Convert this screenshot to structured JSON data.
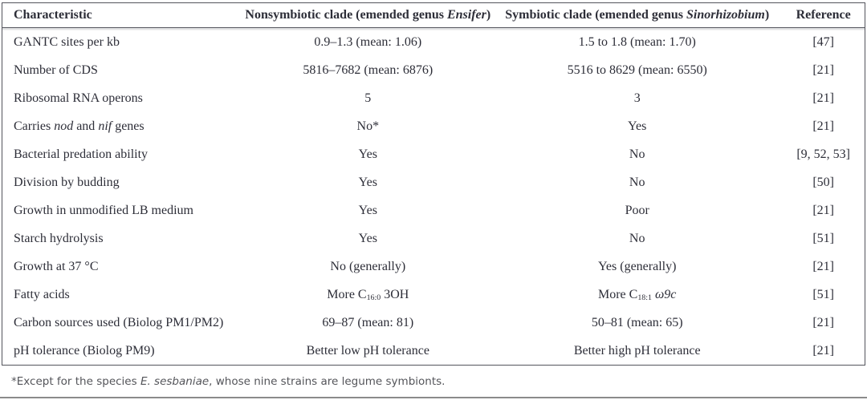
{
  "colors": {
    "text": "#2d2e38",
    "border": "#53545c",
    "footnote_text": "#54555a",
    "bottom_rule": "#8b8b8b"
  },
  "table": {
    "headers": [
      {
        "segments": [
          {
            "t": "Characteristic"
          }
        ]
      },
      {
        "segments": [
          {
            "t": "Nonsymbiotic clade (emended genus "
          },
          {
            "t": "Ensifer",
            "i": true
          },
          {
            "t": ")"
          }
        ]
      },
      {
        "segments": [
          {
            "t": "Symbiotic clade (emended genus "
          },
          {
            "t": "Sinorhizobium",
            "i": true
          },
          {
            "t": ")"
          }
        ]
      },
      {
        "segments": [
          {
            "t": "Reference"
          }
        ]
      }
    ],
    "rows": [
      {
        "characteristic": [
          {
            "t": "GANTC sites per kb"
          }
        ],
        "nonsymbiotic": [
          {
            "t": "0.9–1.3 (mean: 1.06)"
          }
        ],
        "symbiotic": [
          {
            "t": "1.5 to 1.8 (mean: 1.70)"
          }
        ],
        "reference": [
          {
            "t": "[47]"
          }
        ]
      },
      {
        "characteristic": [
          {
            "t": "Number of CDS"
          }
        ],
        "nonsymbiotic": [
          {
            "t": "5816–7682 (mean: 6876)"
          }
        ],
        "symbiotic": [
          {
            "t": "5516 to 8629 (mean: 6550)"
          }
        ],
        "reference": [
          {
            "t": "[21]"
          }
        ]
      },
      {
        "characteristic": [
          {
            "t": "Ribosomal RNA operons"
          }
        ],
        "nonsymbiotic": [
          {
            "t": "5"
          }
        ],
        "symbiotic": [
          {
            "t": "3"
          }
        ],
        "reference": [
          {
            "t": "[21]"
          }
        ]
      },
      {
        "characteristic": [
          {
            "t": "Carries "
          },
          {
            "t": "nod",
            "i": true
          },
          {
            "t": " and "
          },
          {
            "t": "nif",
            "i": true
          },
          {
            "t": " genes"
          }
        ],
        "nonsymbiotic": [
          {
            "t": "No*"
          }
        ],
        "symbiotic": [
          {
            "t": "Yes"
          }
        ],
        "reference": [
          {
            "t": "[21]"
          }
        ]
      },
      {
        "characteristic": [
          {
            "t": "Bacterial predation ability"
          }
        ],
        "nonsymbiotic": [
          {
            "t": "Yes"
          }
        ],
        "symbiotic": [
          {
            "t": "No"
          }
        ],
        "reference": [
          {
            "t": "[9, 52, 53]"
          }
        ]
      },
      {
        "characteristic": [
          {
            "t": "Division by budding"
          }
        ],
        "nonsymbiotic": [
          {
            "t": "Yes"
          }
        ],
        "symbiotic": [
          {
            "t": "No"
          }
        ],
        "reference": [
          {
            "t": "[50]"
          }
        ]
      },
      {
        "characteristic": [
          {
            "t": "Growth in unmodified LB medium"
          }
        ],
        "nonsymbiotic": [
          {
            "t": "Yes"
          }
        ],
        "symbiotic": [
          {
            "t": "Poor"
          }
        ],
        "reference": [
          {
            "t": "[21]"
          }
        ]
      },
      {
        "characteristic": [
          {
            "t": "Starch hydrolysis"
          }
        ],
        "nonsymbiotic": [
          {
            "t": "Yes"
          }
        ],
        "symbiotic": [
          {
            "t": "No"
          }
        ],
        "reference": [
          {
            "t": "[51]"
          }
        ]
      },
      {
        "characteristic": [
          {
            "t": "Growth at 37 °C"
          }
        ],
        "nonsymbiotic": [
          {
            "t": "No (generally)"
          }
        ],
        "symbiotic": [
          {
            "t": "Yes (generally)"
          }
        ],
        "reference": [
          {
            "t": "[21]"
          }
        ]
      },
      {
        "characteristic": [
          {
            "t": "Fatty acids"
          }
        ],
        "nonsymbiotic": [
          {
            "t": "More C"
          },
          {
            "t": "16:0",
            "sub": true
          },
          {
            "t": " 3OH"
          }
        ],
        "symbiotic": [
          {
            "t": "More C"
          },
          {
            "t": "18:1",
            "sub": true
          },
          {
            "t": " "
          },
          {
            "t": "ω9c",
            "i": true
          }
        ],
        "reference": [
          {
            "t": "[51]"
          }
        ]
      },
      {
        "characteristic": [
          {
            "t": "Carbon sources used (Biolog PM1/PM2)"
          }
        ],
        "nonsymbiotic": [
          {
            "t": "69–87 (mean: 81)"
          }
        ],
        "symbiotic": [
          {
            "t": "50–81 (mean: 65)"
          }
        ],
        "reference": [
          {
            "t": "[21]"
          }
        ]
      },
      {
        "characteristic": [
          {
            "t": "pH tolerance (Biolog PM9)"
          }
        ],
        "nonsymbiotic": [
          {
            "t": "Better low pH tolerance"
          }
        ],
        "symbiotic": [
          {
            "t": "Better high pH tolerance"
          }
        ],
        "reference": [
          {
            "t": "[21]"
          }
        ]
      }
    ],
    "footnote": [
      {
        "t": "*Except for the species "
      },
      {
        "t": "E. sesbaniae",
        "i": true
      },
      {
        "t": ", whose nine strains are legume symbionts."
      }
    ]
  }
}
